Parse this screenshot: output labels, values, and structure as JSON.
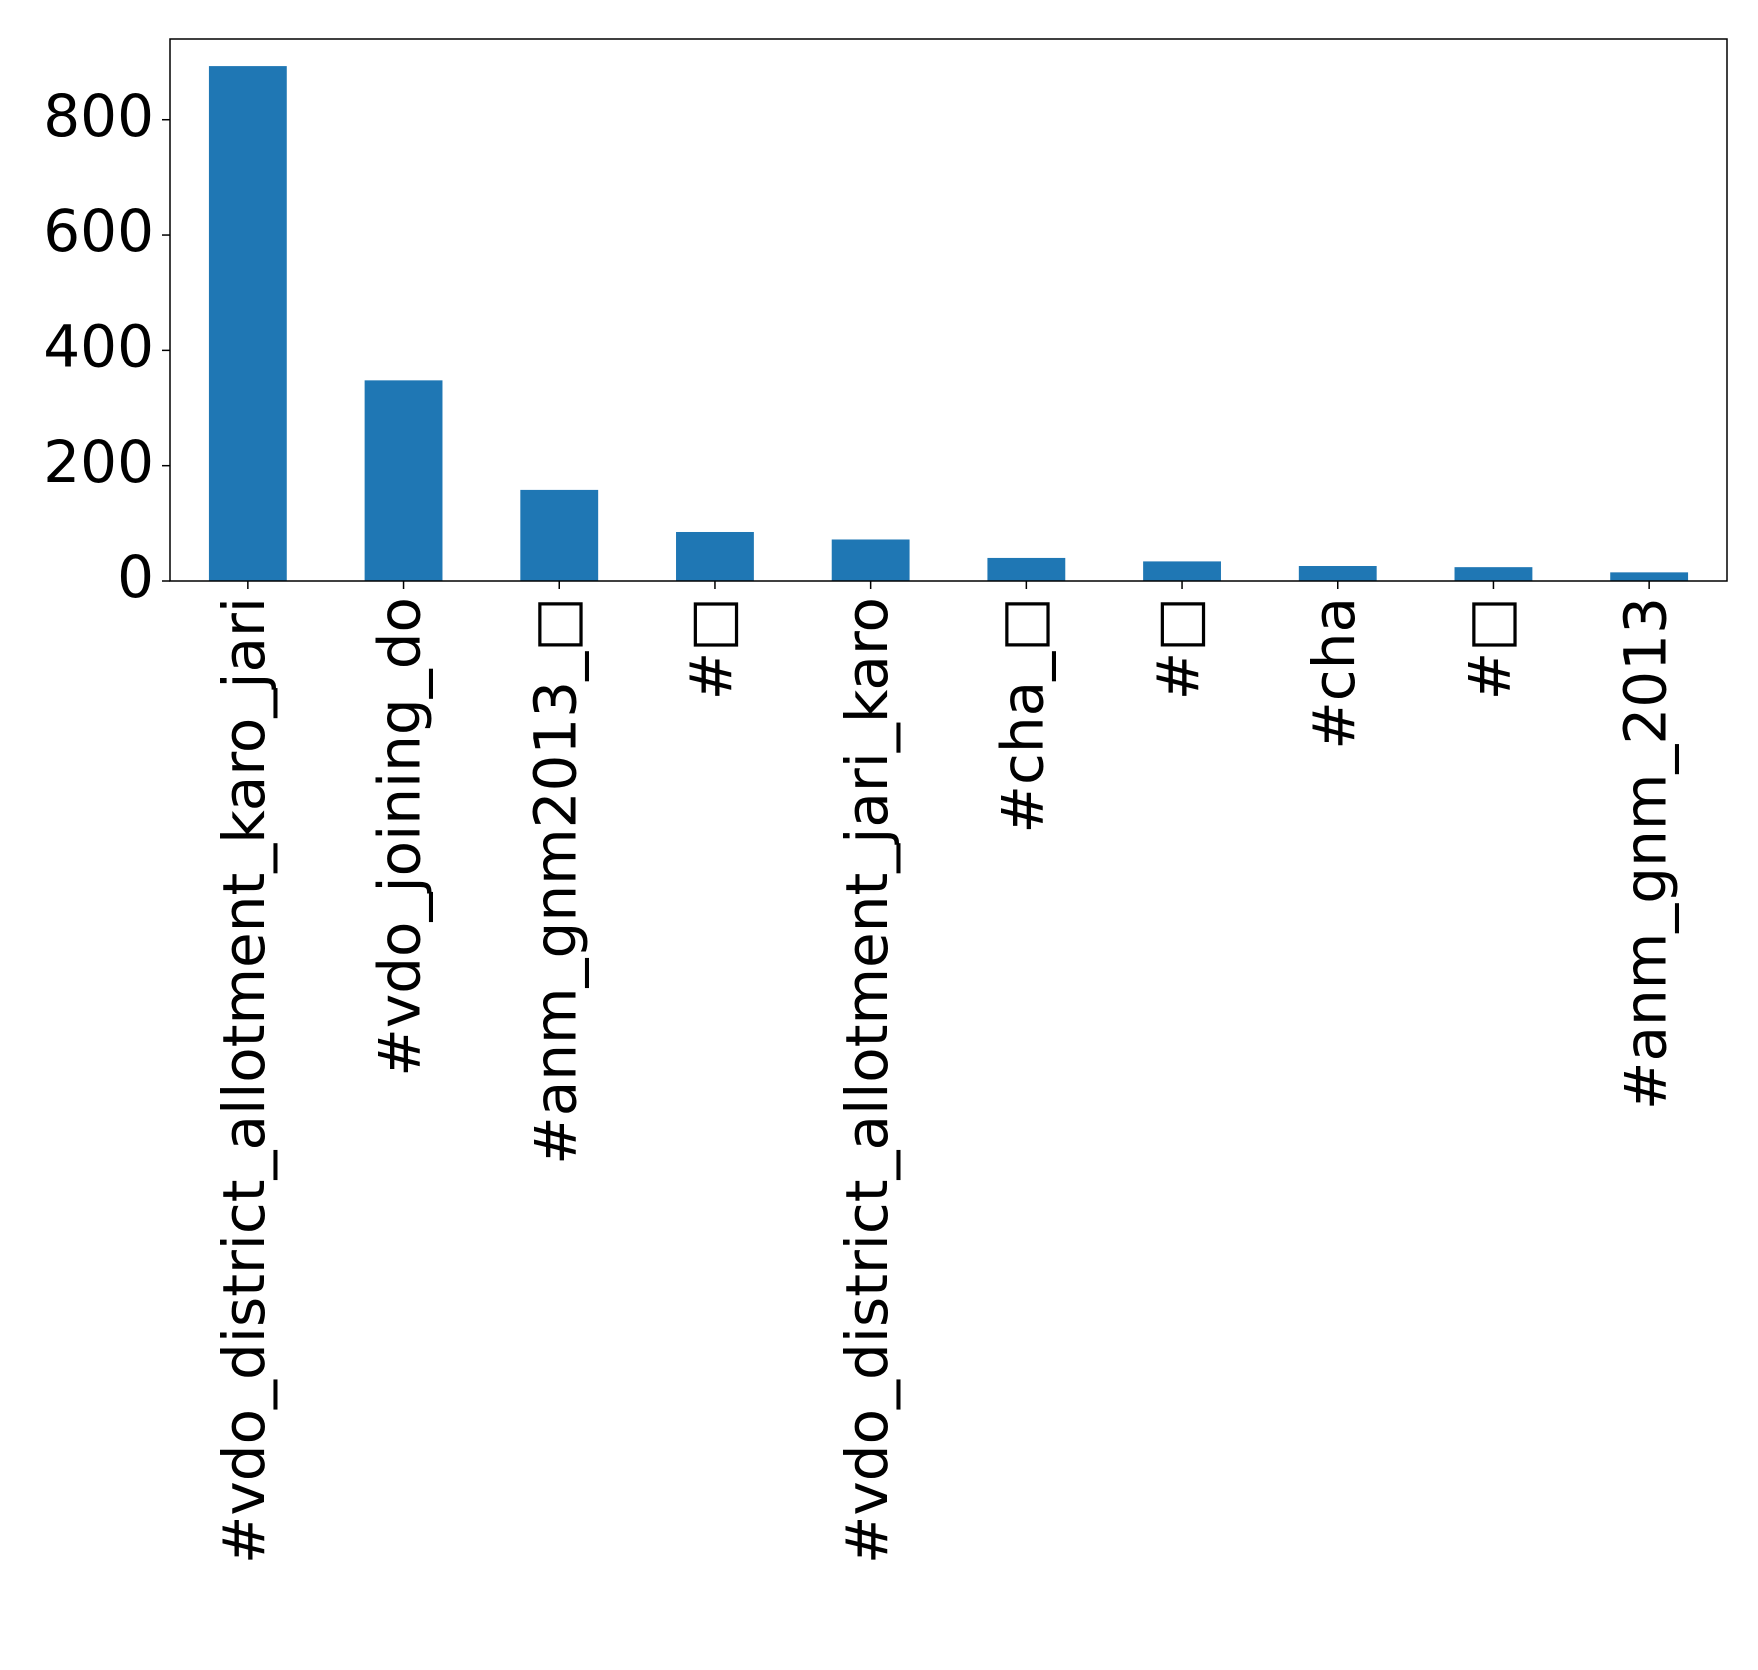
{
  "chart_data": {
    "type": "bar",
    "title": "",
    "xlabel": "",
    "ylabel": "",
    "categories": [
      "#vdo_district_allotment_karo_jari",
      "#vdo_joining_do",
      "#anm_gnm2013_□",
      "#□",
      "#vdo_district_allotment_jari_karo",
      "#cha_□",
      "#□",
      "#cha",
      "#□",
      "#anm_gnm_2013"
    ],
    "values": [
      893,
      348,
      158,
      85,
      72,
      40,
      34,
      26,
      24,
      15
    ],
    "yticks": [
      0,
      200,
      400,
      600,
      800
    ],
    "ylim": [
      0,
      940
    ],
    "grid": false,
    "bar_color": "#1f77b4"
  }
}
